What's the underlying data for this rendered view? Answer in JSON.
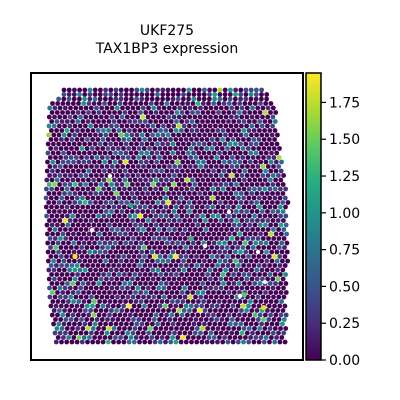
{
  "chart_data": {
    "type": "heatmap",
    "title_line1": "UKF275",
    "title_line2": "TAX1BP3 expression",
    "xlabel": "",
    "ylabel": "",
    "colorbar": {
      "colormap": "viridis",
      "range": [
        0.0,
        1.95
      ],
      "ticks": [
        0.0,
        0.25,
        0.5,
        0.75,
        1.0,
        1.25,
        1.5,
        1.75
      ],
      "tick_labels": [
        "0.00",
        "0.25",
        "0.50",
        "0.75",
        "1.00",
        "1.25",
        "1.50",
        "1.75"
      ]
    },
    "spots": {
      "description_values": "hexagonal spatial transcriptomics spots, mostly 0 with scattered expression values up to about 1.95",
      "distribution": {
        "zero": 0.55,
        "low_0_to_0_5": 0.3,
        "mid_0_5_to_1_0": 0.12,
        "high_1_0_to_1_95": 0.03
      },
      "highlighted": [
        {
          "x": 0.12,
          "y": 0.35,
          "value": 1.9
        },
        {
          "x": 0.9,
          "y": 0.15,
          "value": 1.85
        },
        {
          "x": 0.82,
          "y": 0.2,
          "value": 1.45
        },
        {
          "x": 0.6,
          "y": 0.42,
          "value": 1.3
        },
        {
          "x": 0.35,
          "y": 0.55,
          "value": 1.2
        }
      ]
    },
    "colors": {
      "low": "#440154",
      "high": "#fde725",
      "frame": "#000000"
    }
  }
}
